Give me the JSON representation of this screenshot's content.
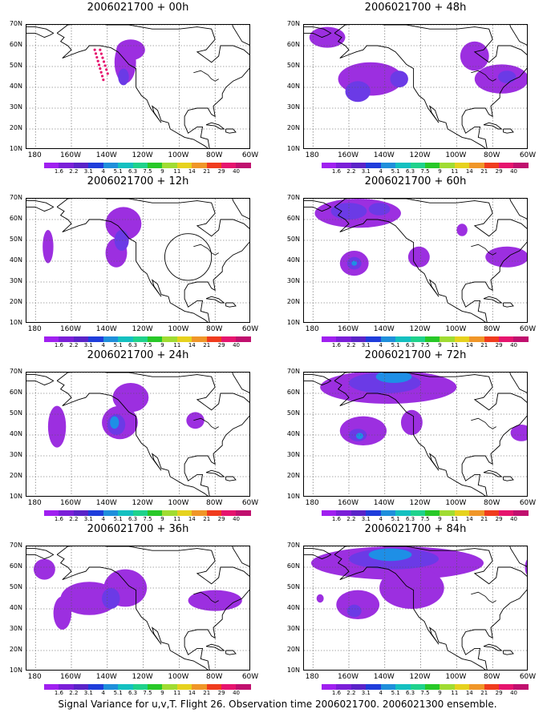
{
  "panels": [
    {
      "title": "2006021700 + 00h",
      "lead": "00h",
      "blobs": [
        {
          "lon": -130,
          "lat": 52,
          "rx": 6,
          "ry": 10,
          "level": 0
        },
        {
          "lon": -127,
          "lat": 58,
          "rx": 8,
          "ry": 5,
          "level": 0
        },
        {
          "lon": -131,
          "lat": 45,
          "rx": 3,
          "ry": 4,
          "level": 1
        }
      ],
      "dots": true
    },
    {
      "title": "2006021700 + 12h",
      "lead": "12h",
      "blobs": [
        {
          "lon": -131,
          "lat": 58,
          "rx": 10,
          "ry": 8,
          "level": 0
        },
        {
          "lon": -135,
          "lat": 44,
          "rx": 6,
          "ry": 7,
          "level": 0
        },
        {
          "lon": -132,
          "lat": 50,
          "rx": 4,
          "ry": 5,
          "level": 1
        },
        {
          "lon": -173,
          "lat": 47,
          "rx": 3,
          "ry": 8,
          "level": 0
        }
      ],
      "circle": {
        "lon": -95,
        "lat": 42,
        "r": 13
      }
    },
    {
      "title": "2006021700 + 24h",
      "lead": "24h",
      "blobs": [
        {
          "lon": -127,
          "lat": 58,
          "rx": 10,
          "ry": 7,
          "level": 0
        },
        {
          "lon": -133,
          "lat": 46,
          "rx": 10,
          "ry": 8,
          "level": 0
        },
        {
          "lon": -135,
          "lat": 45,
          "rx": 5,
          "ry": 5,
          "level": 1
        },
        {
          "lon": -136,
          "lat": 46,
          "rx": 2.5,
          "ry": 3,
          "level": 2
        },
        {
          "lon": -168,
          "lat": 44,
          "rx": 5,
          "ry": 10,
          "level": 0
        },
        {
          "lon": -91,
          "lat": 47,
          "rx": 5,
          "ry": 4,
          "level": 0
        }
      ]
    },
    {
      "title": "2006021700 + 36h",
      "lead": "36h",
      "blobs": [
        {
          "lon": -175,
          "lat": 59,
          "rx": 6,
          "ry": 5,
          "level": 0
        },
        {
          "lon": -150,
          "lat": 45,
          "rx": 16,
          "ry": 8,
          "level": 0
        },
        {
          "lon": -130,
          "lat": 50,
          "rx": 12,
          "ry": 9,
          "level": 0
        },
        {
          "lon": -138,
          "lat": 45,
          "rx": 5,
          "ry": 5,
          "level": 1
        },
        {
          "lon": -165,
          "lat": 38,
          "rx": 5,
          "ry": 8,
          "level": 0
        },
        {
          "lon": -80,
          "lat": 44,
          "rx": 15,
          "ry": 5,
          "level": 0
        }
      ]
    },
    {
      "title": "2006021700 + 48h",
      "lead": "48h",
      "blobs": [
        {
          "lon": -172,
          "lat": 64,
          "rx": 10,
          "ry": 5,
          "level": 0
        },
        {
          "lon": -148,
          "lat": 44,
          "rx": 18,
          "ry": 8,
          "level": 0
        },
        {
          "lon": -155,
          "lat": 38,
          "rx": 7,
          "ry": 5,
          "level": 1
        },
        {
          "lon": -132,
          "lat": 44,
          "rx": 5,
          "ry": 4,
          "level": 1
        },
        {
          "lon": -90,
          "lat": 55,
          "rx": 8,
          "ry": 7,
          "level": 0
        },
        {
          "lon": -75,
          "lat": 44,
          "rx": 15,
          "ry": 7,
          "level": 0
        },
        {
          "lon": -72,
          "lat": 45,
          "rx": 5,
          "ry": 3,
          "level": 1
        }
      ]
    },
    {
      "title": "2006021700 + 60h",
      "lead": "60h",
      "blobs": [
        {
          "lon": -155,
          "lat": 63,
          "rx": 24,
          "ry": 7,
          "level": 0
        },
        {
          "lon": -160,
          "lat": 64,
          "rx": 10,
          "ry": 4,
          "level": 1
        },
        {
          "lon": -143,
          "lat": 65,
          "rx": 6,
          "ry": 3,
          "level": 1
        },
        {
          "lon": -157,
          "lat": 39,
          "rx": 8,
          "ry": 6,
          "level": 0
        },
        {
          "lon": -157,
          "lat": 39,
          "rx": 4,
          "ry": 3,
          "level": 1
        },
        {
          "lon": -157,
          "lat": 39,
          "rx": 1.5,
          "ry": 1.2,
          "level": 2
        },
        {
          "lon": -121,
          "lat": 42,
          "rx": 6,
          "ry": 5,
          "level": 0
        },
        {
          "lon": -97,
          "lat": 55,
          "rx": 3,
          "ry": 3,
          "level": 0
        },
        {
          "lon": -72,
          "lat": 42,
          "rx": 12,
          "ry": 5,
          "level": 0
        }
      ]
    },
    {
      "title": "2006021700 + 72h",
      "lead": "72h",
      "blobs": [
        {
          "lon": -138,
          "lat": 63,
          "rx": 38,
          "ry": 8,
          "level": 0
        },
        {
          "lon": -140,
          "lat": 65,
          "rx": 20,
          "ry": 5,
          "level": 1
        },
        {
          "lon": -135,
          "lat": 68,
          "rx": 10,
          "ry": 3,
          "level": 2
        },
        {
          "lon": -152,
          "lat": 42,
          "rx": 13,
          "ry": 7,
          "level": 0
        },
        {
          "lon": -155,
          "lat": 40,
          "rx": 5,
          "ry": 3,
          "level": 1
        },
        {
          "lon": -154,
          "lat": 39.5,
          "rx": 2,
          "ry": 1.5,
          "level": 2
        },
        {
          "lon": -125,
          "lat": 46,
          "rx": 6,
          "ry": 6,
          "level": 0
        },
        {
          "lon": -64,
          "lat": 41,
          "rx": 6,
          "ry": 4,
          "level": 0
        }
      ]
    },
    {
      "title": "2006021700 + 84h",
      "lead": "84h",
      "blobs": [
        {
          "lon": -133,
          "lat": 62,
          "rx": 48,
          "ry": 8,
          "level": 0
        },
        {
          "lon": -125,
          "lat": 50,
          "rx": 18,
          "ry": 10,
          "level": 0
        },
        {
          "lon": -135,
          "lat": 64,
          "rx": 25,
          "ry": 5,
          "level": 1
        },
        {
          "lon": -137,
          "lat": 66,
          "rx": 12,
          "ry": 3,
          "level": 2
        },
        {
          "lon": -155,
          "lat": 42,
          "rx": 12,
          "ry": 7,
          "level": 0
        },
        {
          "lon": -157,
          "lat": 39,
          "rx": 4,
          "ry": 3,
          "level": 1
        },
        {
          "lon": -176,
          "lat": 45,
          "rx": 2,
          "ry": 2,
          "level": 0
        },
        {
          "lon": -60,
          "lat": 60,
          "rx": 2,
          "ry": 4,
          "level": 0
        }
      ]
    }
  ],
  "axes": {
    "lat_ticks": [
      "70N",
      "60N",
      "50N",
      "40N",
      "30N",
      "20N",
      "10N"
    ],
    "lat_values": [
      70,
      60,
      50,
      40,
      30,
      20,
      10
    ],
    "lon_ticks": [
      "180",
      "160W",
      "140W",
      "120W",
      "100W",
      "80W",
      "60W"
    ],
    "lon_values": [
      -180,
      -160,
      -140,
      -120,
      -100,
      -80,
      -60
    ],
    "lon_range": [
      -185,
      -60
    ],
    "lat_range": [
      10,
      70
    ]
  },
  "colorbar": {
    "labels": [
      "1.6",
      "2.2",
      "3.1",
      "4",
      "5.1",
      "6.3",
      "7.5",
      "9",
      "11",
      "14",
      "21",
      "29",
      "40"
    ],
    "colors": [
      "#a020f0",
      "#7b1fd8",
      "#5a23c8",
      "#1f3ddb",
      "#1f8fdb",
      "#14c0c0",
      "#1fd28c",
      "#28c828",
      "#a0dc32",
      "#e6d21e",
      "#f09628",
      "#f03c1e",
      "#e6146e",
      "#c0106e"
    ]
  },
  "shade_colors": [
    "#9c2fe0",
    "#6b3ae6",
    "#1e8fe6"
  ],
  "caption": "Signal Variance for u,v,T. Flight 26. Observation time 2006021700. 2006021300 ensemble."
}
